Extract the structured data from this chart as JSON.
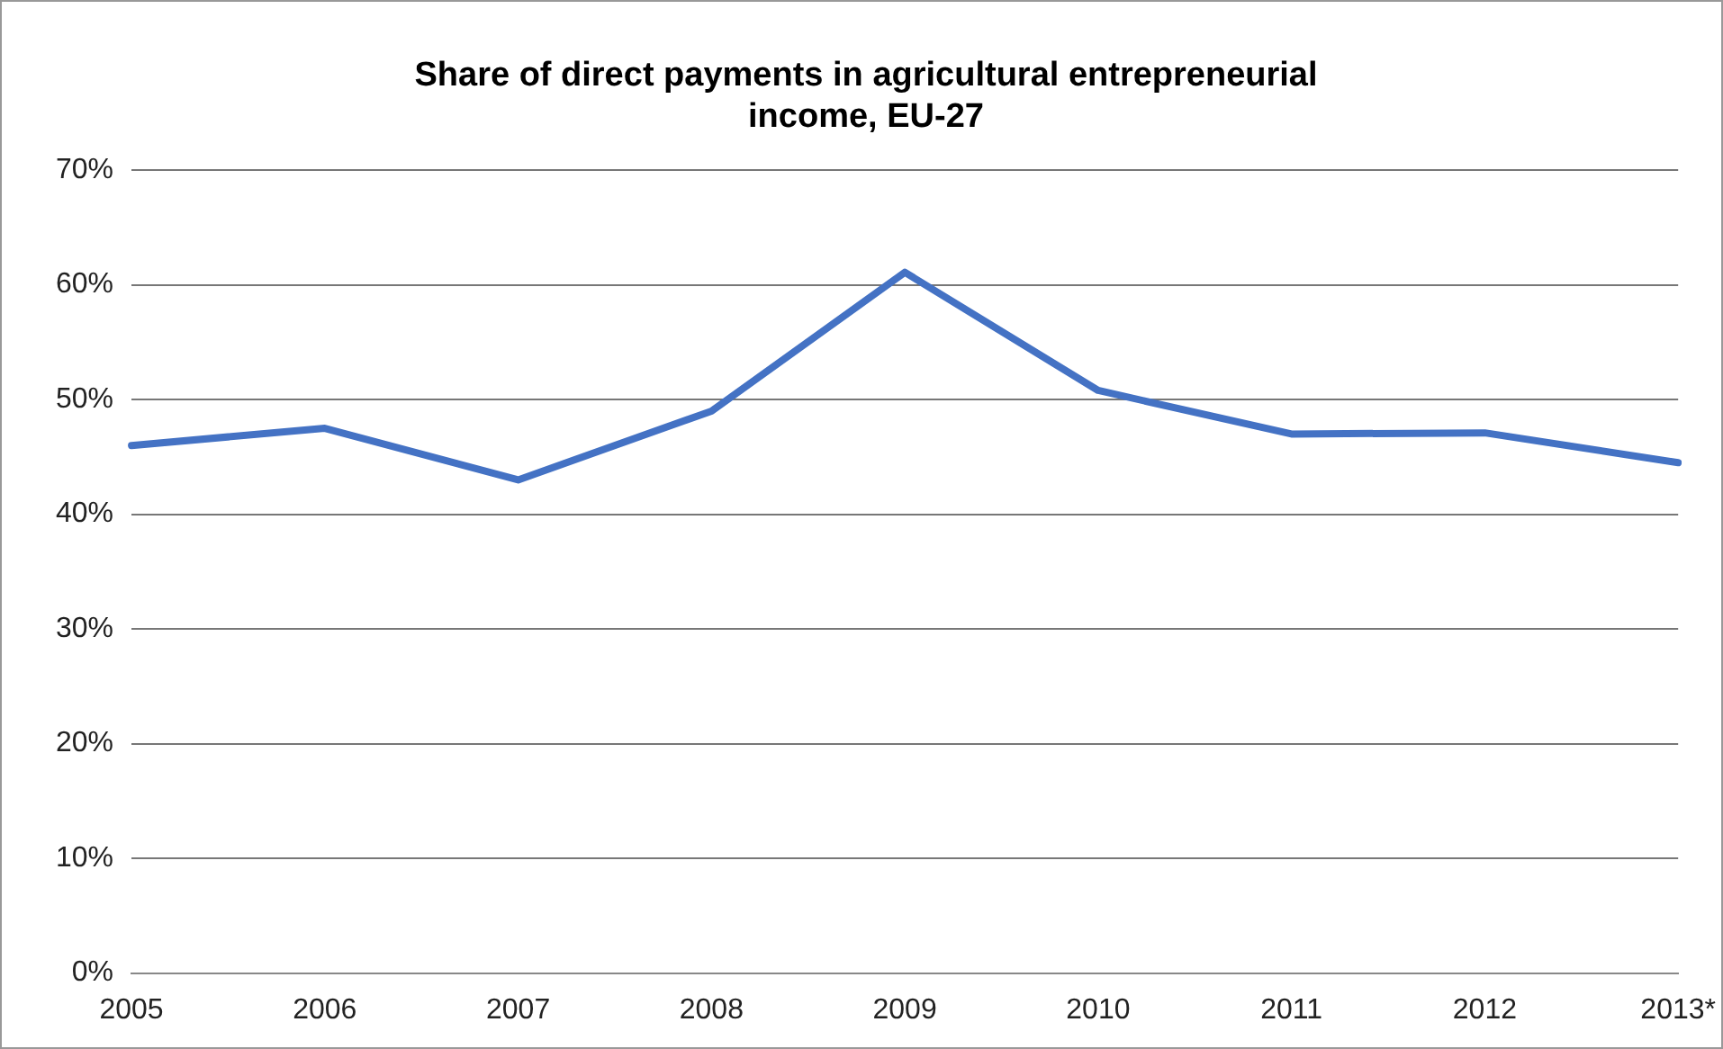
{
  "chart_data": {
    "type": "line",
    "title": [
      "Share of direct payments in agricultural entrepreneurial",
      "income, EU-27"
    ],
    "categories": [
      "2005",
      "2006",
      "2007",
      "2008",
      "2009",
      "2010",
      "2011",
      "2012",
      "2013*"
    ],
    "series": [
      {
        "color": "#4472c4",
        "values": [
          46.0,
          47.5,
          43.0,
          49.0,
          61.1,
          50.8,
          47.0,
          47.1,
          44.5
        ]
      }
    ],
    "ylim": [
      0,
      70
    ],
    "yticks": [
      {
        "value": 0,
        "label": "0%"
      },
      {
        "value": 10,
        "label": "10%"
      },
      {
        "value": 20,
        "label": "20%"
      },
      {
        "value": 30,
        "label": "30%"
      },
      {
        "value": 40,
        "label": "40%"
      },
      {
        "value": 50,
        "label": "50%"
      },
      {
        "value": 60,
        "label": "60%"
      },
      {
        "value": 70,
        "label": "70%"
      }
    ],
    "grid": "y",
    "legend": false,
    "marker": "none",
    "line_style": "solid"
  }
}
